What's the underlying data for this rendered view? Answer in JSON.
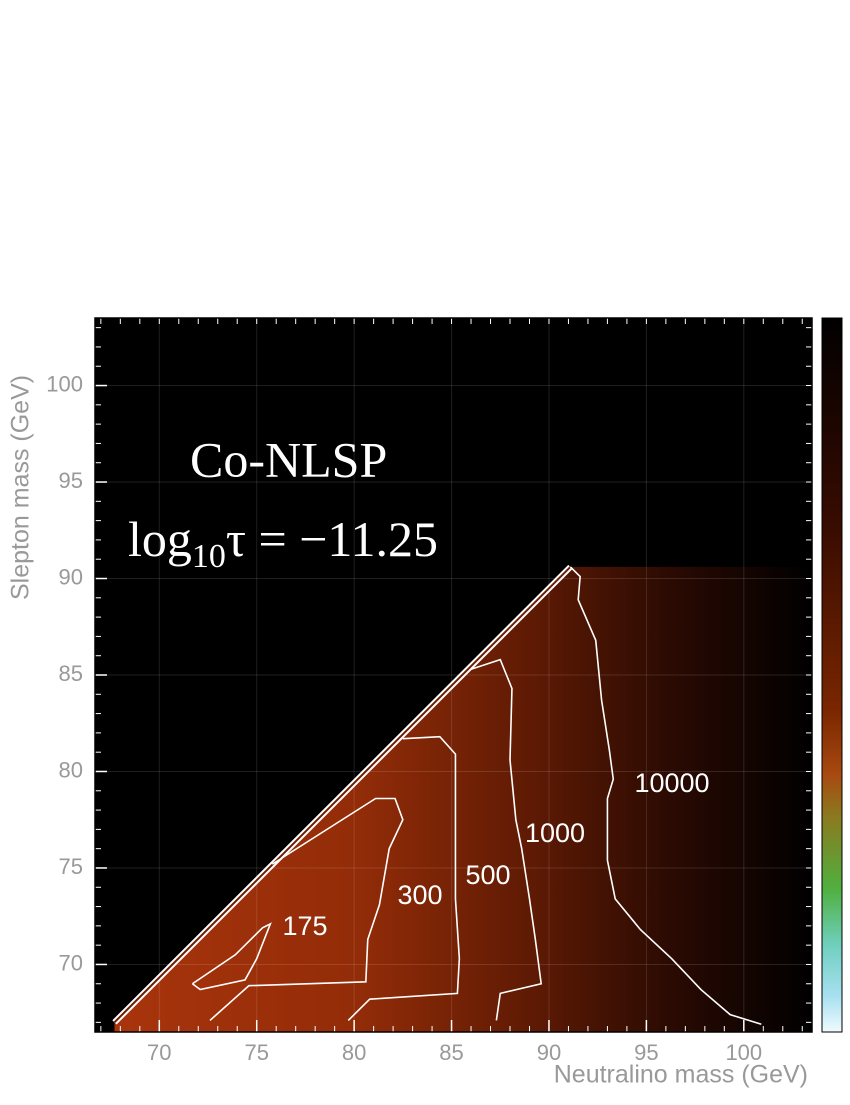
{
  "chart_data": {
    "type": "contour",
    "annotations": [
      "Co-NLSP"
    ],
    "formula": {
      "base": "log",
      "subscript": "10",
      "rest": "τ = −11.25"
    },
    "x_label": "Neutralino mass (GeV)",
    "y_label": "Slepton mass (GeV)",
    "xlim": [
      66.7,
      103.5
    ],
    "ylim": [
      66.5,
      103.5
    ],
    "xticks": [
      70,
      75,
      80,
      85,
      90,
      95,
      100
    ],
    "yticks": [
      70,
      75,
      80,
      85,
      90,
      95,
      100
    ],
    "minor_tick_step": 1,
    "grid": true,
    "color": "#ffffff",
    "boundary": {
      "x": [
        67.7,
        91.1
      ],
      "y": [
        67.0,
        90.6
      ]
    },
    "series": [
      {
        "name": "175",
        "x": [
          71.7,
          73.9,
          75.3,
          75.7,
          75.0,
          74.4,
          72.1,
          71.7
        ],
        "y": [
          69.0,
          70.5,
          71.9,
          72.1,
          70.3,
          69.2,
          68.7,
          69.0
        ]
      },
      {
        "name": "300",
        "x": [
          75.8,
          81.1,
          82.1,
          82.5,
          81.8,
          81.3,
          80.7,
          80.6,
          74.6,
          72.6
        ],
        "y": [
          75.2,
          78.6,
          78.6,
          77.5,
          76.0,
          73.1,
          71.3,
          69.1,
          68.9,
          67.1
        ]
      },
      {
        "name": "500",
        "x": [
          82.5,
          84.4,
          85.2,
          85.2,
          85.2,
          85.4,
          85.3,
          80.8,
          79.7
        ],
        "y": [
          81.7,
          81.8,
          80.9,
          77.0,
          73.4,
          70.3,
          68.5,
          68.2,
          67.1
        ]
      },
      {
        "name": "1000",
        "x": [
          86.0,
          87.5,
          88.1,
          88.0,
          88.3,
          88.6,
          89.0,
          89.3,
          89.6,
          87.5,
          87.3
        ],
        "y": [
          85.3,
          85.8,
          84.3,
          80.6,
          77.5,
          76.0,
          73.4,
          71.3,
          69.0,
          68.5,
          67.1
        ]
      },
      {
        "name": "10000",
        "x": [
          91.1,
          91.6,
          91.5,
          92.4,
          92.7,
          93.1,
          93.3,
          93.0,
          93.0,
          93.4,
          94.7,
          96.3,
          97.8,
          99.3,
          100.9
        ],
        "y": [
          90.6,
          90.1,
          88.9,
          86.8,
          83.7,
          81.1,
          79.6,
          78.6,
          75.4,
          73.4,
          71.8,
          70.3,
          68.7,
          67.4,
          66.9
        ]
      }
    ]
  }
}
